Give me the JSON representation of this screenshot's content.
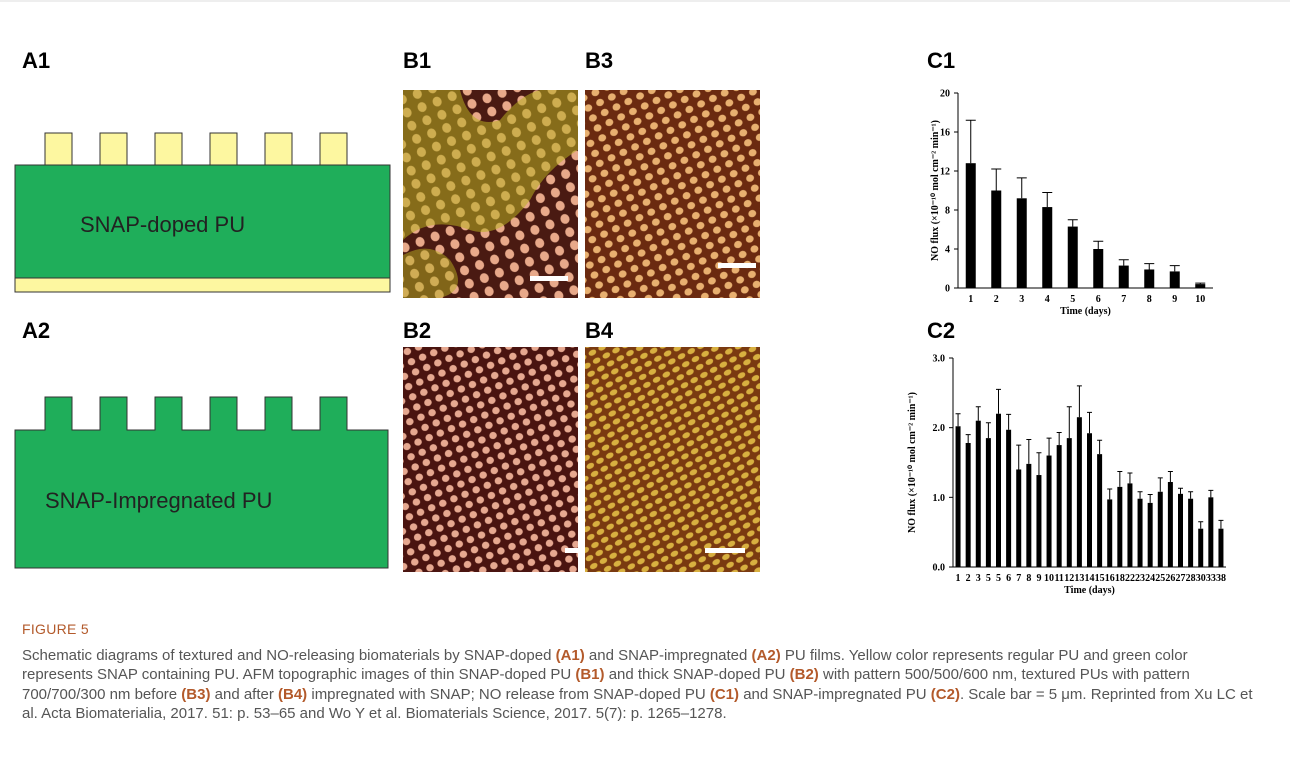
{
  "panels": {
    "a1": "A1",
    "a2": "A2",
    "b1": "B1",
    "b2": "B2",
    "b3": "B3",
    "b4": "B4",
    "c1": "C1",
    "c2": "C2"
  },
  "schematic": {
    "a1_label": "SNAP-doped PU",
    "a2_label": "SNAP-Impregnated PU"
  },
  "chart_data": [
    {
      "type": "bar",
      "y_label": "NO flux (×10⁻¹⁰ mol cm⁻² min⁻¹)",
      "x_label": "Time (days)",
      "categories": [
        "1",
        "2",
        "3",
        "4",
        "5",
        "6",
        "7",
        "8",
        "9",
        "10"
      ],
      "values": [
        12.8,
        10,
        9.2,
        8.3,
        6.3,
        4.0,
        2.3,
        1.9,
        1.7,
        0.4
      ],
      "errors": [
        4.4,
        2.2,
        2.1,
        1.5,
        0.7,
        0.8,
        0.6,
        0.6,
        0.6,
        0.1
      ],
      "color": "#000000",
      "ylim": [
        0,
        20
      ],
      "yticks": [
        0,
        4,
        8,
        12,
        16,
        20
      ]
    },
    {
      "type": "bar",
      "y_label": "NO flux (×10⁻¹⁰ mol cm⁻² min⁻¹)",
      "x_label": "Time (days)",
      "categories": [
        "1",
        "2",
        "3",
        "5",
        "5",
        "6",
        "7",
        "8",
        "9",
        "10",
        "11",
        "12",
        "13",
        "14",
        "15",
        "16",
        "18",
        "22",
        "23",
        "24",
        "25",
        "26",
        "27",
        "28",
        "30",
        "33",
        "38"
      ],
      "values": [
        2.02,
        1.78,
        2.1,
        1.85,
        2.2,
        1.97,
        1.4,
        1.48,
        1.32,
        1.6,
        1.75,
        1.85,
        2.15,
        1.92,
        1.62,
        0.97,
        1.15,
        1.2,
        0.98,
        0.92,
        1.08,
        1.22,
        1.05,
        0.98,
        0.55,
        1.0,
        0.55
      ],
      "errors": [
        0.18,
        0.12,
        0.2,
        0.22,
        0.35,
        0.22,
        0.35,
        0.35,
        0.32,
        0.25,
        0.18,
        0.45,
        0.45,
        0.3,
        0.2,
        0.15,
        0.22,
        0.15,
        0.1,
        0.12,
        0.2,
        0.15,
        0.08,
        0.1,
        0.1,
        0.1,
        0.12
      ],
      "color": "#000000",
      "ylim": [
        0,
        3
      ],
      "yticks": [
        {
          "value": 0,
          "label": "0.0"
        },
        {
          "value": 1,
          "label": "1.0"
        },
        {
          "value": 2,
          "label": "2.0"
        },
        {
          "value": 3,
          "label": "3.0"
        }
      ]
    }
  ],
  "caption": {
    "figure": "FIGURE 5",
    "parts": [
      {
        "text": "Schematic diagrams of textured and NO-releasing biomaterials by SNAP-doped ",
        "bold": false
      },
      {
        "text": "(A1)",
        "bold": true
      },
      {
        "text": " and SNAP-impregnated ",
        "bold": false
      },
      {
        "text": "(A2)",
        "bold": true
      },
      {
        "text": " PU films. Yellow color represents regular PU and green color represents SNAP containing PU. AFM topographic images of thin SNAP-doped PU ",
        "bold": false
      },
      {
        "text": "(B1)",
        "bold": true
      },
      {
        "text": " and thick SNAP-doped PU ",
        "bold": false
      },
      {
        "text": "(B2)",
        "bold": true
      },
      {
        "text": " with pattern 500/500/600 nm, textured PUs with pattern 700/700/300 nm before ",
        "bold": false
      },
      {
        "text": "(B3)",
        "bold": true
      },
      {
        "text": " and after ",
        "bold": false
      },
      {
        "text": "(B4)",
        "bold": true
      },
      {
        "text": " impregnated with SNAP; NO release from SNAP-doped PU ",
        "bold": false
      },
      {
        "text": "(C1)",
        "bold": true
      },
      {
        "text": " and SNAP-impregnated PU ",
        "bold": false
      },
      {
        "text": "(C2)",
        "bold": true
      },
      {
        "text": ". Scale bar = 5 μm. Reprinted from Xu LC et al. Acta Biomaterialia, 2017. 51: p. 53–65 and Wo Y et al. Biomaterials Science, 2017. 5(7): p. 1265–1278.",
        "bold": false
      }
    ]
  }
}
